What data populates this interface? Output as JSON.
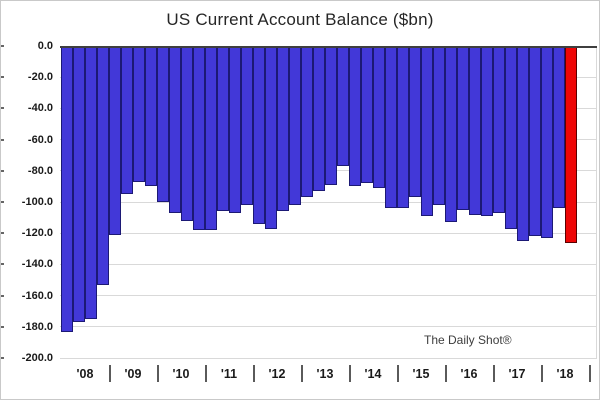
{
  "title": "US Current Account Balance ($bn)",
  "watermark": "The Daily Shot®",
  "colors": {
    "bar_fill": "#4238d8",
    "bar_border": "#1c1975",
    "highlight_fill": "#ee0606",
    "highlight_border": "#5a0000",
    "gridline": "#d9d9d9",
    "zero_line": "#3f3f3f",
    "text": "#1a1a1a",
    "background": "#ffffff"
  },
  "chart_data": {
    "type": "bar",
    "title": "US Current Account Balance ($bn)",
    "xlabel": "",
    "ylabel": "",
    "ylim": [
      -200,
      0
    ],
    "grid": "horizontal",
    "legend": "none",
    "annotation": "The Daily Shot®",
    "y_ticks": [
      "0.0",
      "-20.0",
      "-40.0",
      "-60.0",
      "-80.0",
      "-100.0",
      "-120.0",
      "-140.0",
      "-160.0",
      "-180.0",
      "-200.0"
    ],
    "x_axis_year_labels": [
      "'08",
      "'09",
      "'10",
      "'11",
      "'12",
      "'13",
      "'14",
      "'15",
      "'16",
      "'17",
      "'18"
    ],
    "categories": [
      "2008 Q1",
      "2008 Q2",
      "2008 Q3",
      "2008 Q4",
      "2009 Q1",
      "2009 Q2",
      "2009 Q3",
      "2009 Q4",
      "2010 Q1",
      "2010 Q2",
      "2010 Q3",
      "2010 Q4",
      "2011 Q1",
      "2011 Q2",
      "2011 Q3",
      "2011 Q4",
      "2012 Q1",
      "2012 Q2",
      "2012 Q3",
      "2012 Q4",
      "2013 Q1",
      "2013 Q2",
      "2013 Q3",
      "2013 Q4",
      "2014 Q1",
      "2014 Q2",
      "2014 Q3",
      "2014 Q4",
      "2015 Q1",
      "2015 Q2",
      "2015 Q3",
      "2015 Q4",
      "2016 Q1",
      "2016 Q2",
      "2016 Q3",
      "2016 Q4",
      "2017 Q1",
      "2017 Q2",
      "2017 Q3",
      "2017 Q4",
      "2018 Q1",
      "2018 Q2",
      "2018 Q3"
    ],
    "values": [
      -183,
      -177,
      -175,
      -153,
      -121,
      -95,
      -87,
      -90,
      -100,
      -107,
      -112,
      -118,
      -118,
      -106,
      -107,
      -102,
      -114,
      -117,
      -106,
      -102,
      -97,
      -93,
      -89,
      -77,
      -90,
      -88,
      -91,
      -104,
      -104,
      -97,
      -109,
      -102,
      -113,
      -105,
      -108,
      -109,
      -107,
      -117,
      -125,
      -122,
      -123,
      -104,
      -126
    ],
    "highlighted_category": "2018 Q3",
    "highlight_meaning": "most recent bar shown in red"
  }
}
